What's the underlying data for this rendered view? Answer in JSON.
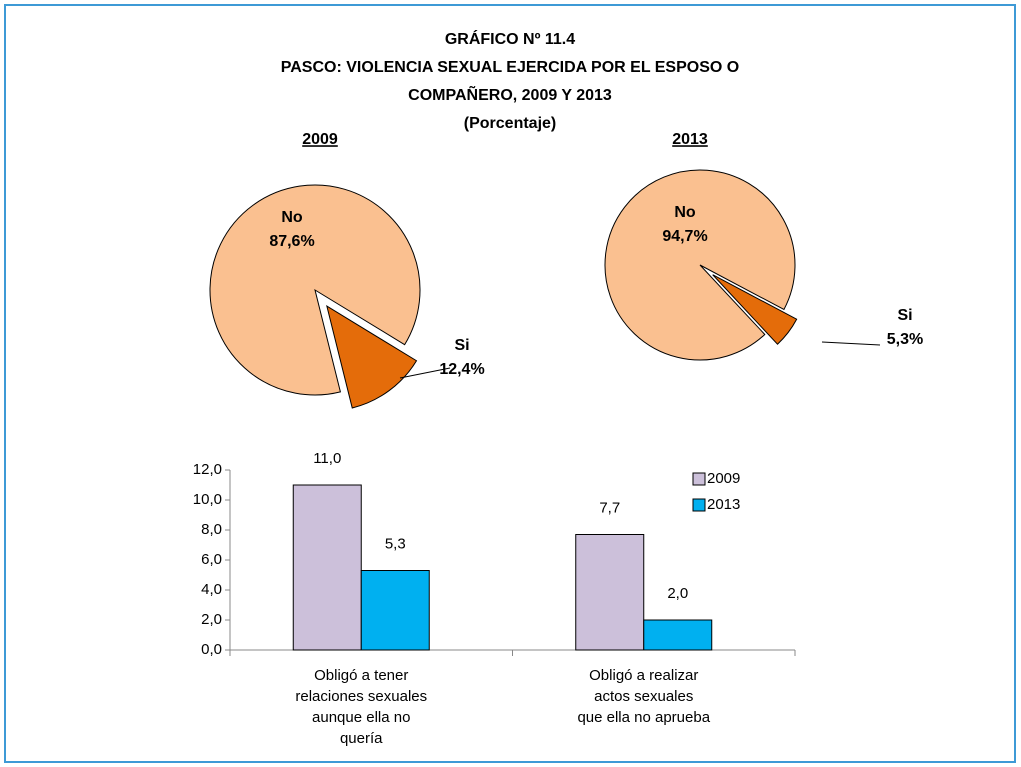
{
  "title": [
    "GRÁFICO Nº 11.4",
    "PASCO: VIOLENCIA SEXUAL EJERCIDA POR EL ESPOSO O",
    "COMPAÑERO, 2009 Y 2013",
    "(Porcentaje)"
  ],
  "chart_data": [
    {
      "type": "pie",
      "title": "2009",
      "categories": [
        "No",
        "Si"
      ],
      "values": [
        87.6,
        12.4
      ],
      "value_labels": [
        "87,6%",
        "12,4%"
      ],
      "colors": [
        "#fac090",
        "#e46c0a"
      ]
    },
    {
      "type": "pie",
      "title": "2013",
      "categories": [
        "No",
        "Si"
      ],
      "values": [
        94.7,
        5.3
      ],
      "value_labels": [
        "94,7%",
        "5,3%"
      ],
      "colors": [
        "#fac090",
        "#e46c0a"
      ]
    },
    {
      "type": "bar",
      "categories": [
        [
          "Obligó a tener",
          "relaciones sexuales",
          "aunque ella no",
          "quería"
        ],
        [
          "Obligó a realizar",
          "actos sexuales",
          "que ella no aprueba"
        ]
      ],
      "series": [
        {
          "name": "2009",
          "color": "#ccc0da",
          "values": [
            11.0,
            7.7
          ],
          "value_labels": [
            "11,0",
            "7,7"
          ]
        },
        {
          "name": "2013",
          "color": "#00b0f0",
          "values": [
            5.3,
            2.0
          ],
          "value_labels": [
            "5,3",
            "2,0"
          ]
        }
      ],
      "ylim": [
        0,
        12
      ],
      "yticks": [
        {
          "value": 0,
          "label": "0,0"
        },
        {
          "value": 2,
          "label": "2,0"
        },
        {
          "value": 4,
          "label": "4,0"
        },
        {
          "value": 6,
          "label": "6,0"
        },
        {
          "value": 8,
          "label": "8,0"
        },
        {
          "value": 10,
          "label": "10,0"
        },
        {
          "value": 12,
          "label": "12,0"
        }
      ],
      "legend": "upper right"
    }
  ]
}
